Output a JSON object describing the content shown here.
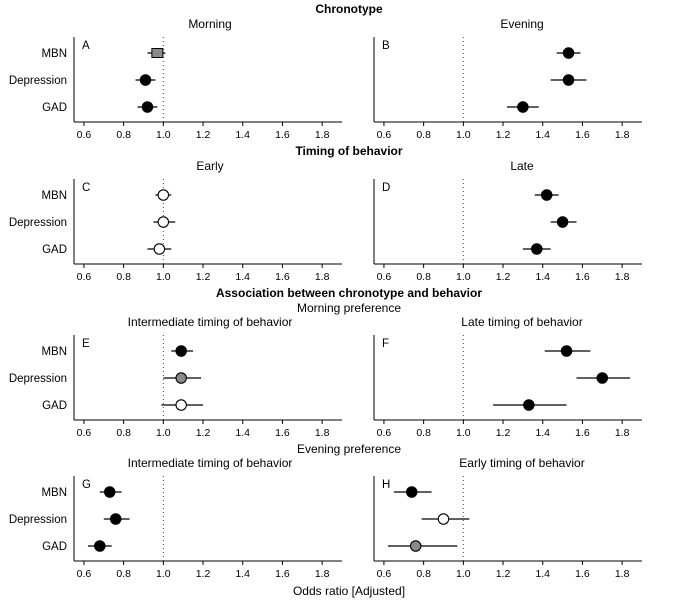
{
  "figure": {
    "xlabel": "Odds ratio [Adjusted]",
    "row_labels": [
      "MBN",
      "Depression",
      "GAD"
    ],
    "axis": {
      "ticks": [
        0.6,
        0.8,
        1.0,
        1.2,
        1.4,
        1.6,
        1.8
      ],
      "range": [
        0.55,
        1.9
      ],
      "reference_line": 1.0
    },
    "sections": [
      {
        "header": "Chronotype"
      },
      {
        "header": "Timing of behavior"
      },
      {
        "header": "Association between chronotype and behavior",
        "subheader": "Morning preference"
      },
      {
        "header": "Evening preference"
      }
    ]
  },
  "chart_data": [
    {
      "type": "scatter",
      "panel_label": "A",
      "title": "Morning",
      "side": "left",
      "categories": [
        "MBN",
        "Depression",
        "GAD"
      ],
      "points": [
        {
          "or": 0.97,
          "lo": 0.92,
          "hi": 1.01,
          "fill": "gray",
          "marker": "square"
        },
        {
          "or": 0.91,
          "lo": 0.86,
          "hi": 0.96,
          "fill": "black",
          "marker": "circle"
        },
        {
          "or": 0.92,
          "lo": 0.87,
          "hi": 0.97,
          "fill": "black",
          "marker": "circle"
        }
      ],
      "xlim": [
        0.55,
        1.9
      ],
      "ref_line": 1.0
    },
    {
      "type": "scatter",
      "panel_label": "B",
      "title": "Evening",
      "side": "right",
      "categories": [
        "MBN",
        "Depression",
        "GAD"
      ],
      "points": [
        {
          "or": 1.53,
          "lo": 1.47,
          "hi": 1.59,
          "fill": "black",
          "marker": "circle"
        },
        {
          "or": 1.53,
          "lo": 1.44,
          "hi": 1.62,
          "fill": "black",
          "marker": "circle"
        },
        {
          "or": 1.3,
          "lo": 1.22,
          "hi": 1.38,
          "fill": "black",
          "marker": "circle"
        }
      ],
      "xlim": [
        0.55,
        1.9
      ],
      "ref_line": 1.0
    },
    {
      "type": "scatter",
      "panel_label": "C",
      "title": "Early",
      "side": "left",
      "categories": [
        "MBN",
        "Depression",
        "GAD"
      ],
      "points": [
        {
          "or": 1.0,
          "lo": 0.96,
          "hi": 1.04,
          "fill": "white",
          "marker": "circle"
        },
        {
          "or": 1.0,
          "lo": 0.95,
          "hi": 1.06,
          "fill": "white",
          "marker": "circle"
        },
        {
          "or": 0.98,
          "lo": 0.92,
          "hi": 1.04,
          "fill": "white",
          "marker": "circle"
        }
      ],
      "xlim": [
        0.55,
        1.9
      ],
      "ref_line": 1.0
    },
    {
      "type": "scatter",
      "panel_label": "D",
      "title": "Late",
      "side": "right",
      "categories": [
        "MBN",
        "Depression",
        "GAD"
      ],
      "points": [
        {
          "or": 1.42,
          "lo": 1.36,
          "hi": 1.48,
          "fill": "black",
          "marker": "circle"
        },
        {
          "or": 1.5,
          "lo": 1.44,
          "hi": 1.57,
          "fill": "black",
          "marker": "circle"
        },
        {
          "or": 1.37,
          "lo": 1.3,
          "hi": 1.44,
          "fill": "black",
          "marker": "circle"
        }
      ],
      "xlim": [
        0.55,
        1.9
      ],
      "ref_line": 1.0
    },
    {
      "type": "scatter",
      "panel_label": "E",
      "title": "Intermediate timing of behavior",
      "side": "left",
      "categories": [
        "MBN",
        "Depression",
        "GAD"
      ],
      "points": [
        {
          "or": 1.09,
          "lo": 1.04,
          "hi": 1.15,
          "fill": "black",
          "marker": "circle"
        },
        {
          "or": 1.09,
          "lo": 1.0,
          "hi": 1.19,
          "fill": "gray",
          "marker": "circle"
        },
        {
          "or": 1.09,
          "lo": 0.99,
          "hi": 1.2,
          "fill": "white",
          "marker": "circle"
        }
      ],
      "xlim": [
        0.55,
        1.9
      ],
      "ref_line": 1.0
    },
    {
      "type": "scatter",
      "panel_label": "F",
      "title": "Late timing of behavior",
      "side": "right",
      "categories": [
        "MBN",
        "Depression",
        "GAD"
      ],
      "points": [
        {
          "or": 1.52,
          "lo": 1.41,
          "hi": 1.64,
          "fill": "black",
          "marker": "circle"
        },
        {
          "or": 1.7,
          "lo": 1.57,
          "hi": 1.84,
          "fill": "black",
          "marker": "circle"
        },
        {
          "or": 1.33,
          "lo": 1.15,
          "hi": 1.52,
          "fill": "black",
          "marker": "circle"
        }
      ],
      "xlim": [
        0.55,
        1.9
      ],
      "ref_line": 1.0
    },
    {
      "type": "scatter",
      "panel_label": "G",
      "title": "Intermediate timing of behavior",
      "side": "left",
      "categories": [
        "MBN",
        "Depression",
        "GAD"
      ],
      "points": [
        {
          "or": 0.73,
          "lo": 0.68,
          "hi": 0.79,
          "fill": "black",
          "marker": "circle"
        },
        {
          "or": 0.76,
          "lo": 0.7,
          "hi": 0.83,
          "fill": "black",
          "marker": "circle"
        },
        {
          "or": 0.68,
          "lo": 0.62,
          "hi": 0.74,
          "fill": "black",
          "marker": "circle"
        }
      ],
      "xlim": [
        0.55,
        1.9
      ],
      "ref_line": 1.0
    },
    {
      "type": "scatter",
      "panel_label": "H",
      "title": "Early timing of behavior",
      "side": "right",
      "categories": [
        "MBN",
        "Depression",
        "GAD"
      ],
      "points": [
        {
          "or": 0.74,
          "lo": 0.65,
          "hi": 0.84,
          "fill": "black",
          "marker": "circle"
        },
        {
          "or": 0.9,
          "lo": 0.79,
          "hi": 1.03,
          "fill": "white",
          "marker": "circle"
        },
        {
          "or": 0.76,
          "lo": 0.62,
          "hi": 0.97,
          "fill": "gray",
          "marker": "circle"
        }
      ],
      "xlim": [
        0.55,
        1.9
      ],
      "ref_line": 1.0
    }
  ]
}
